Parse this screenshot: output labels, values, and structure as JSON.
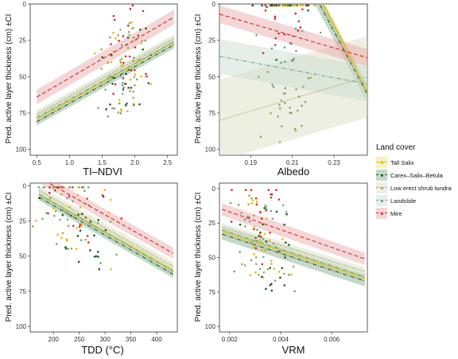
{
  "legend": {
    "title": "Land cover",
    "position": "right",
    "entries": [
      {
        "name": "Tall Salix",
        "color": "#e7b800",
        "fill": "#f5de7a",
        "dash": "none"
      },
      {
        "name": "Carex–Salix–Betula",
        "color": "#1b5e20",
        "fill": "#7fa88a",
        "dash": "dashdot"
      },
      {
        "name": "Low erect shrub tundra",
        "color": "#a3a35a",
        "fill": "#dadbc0",
        "dash": "dotted"
      },
      {
        "name": "Landslide",
        "color": "#6fa387",
        "fill": "#c6dccd",
        "dash": "dashdot"
      },
      {
        "name": "Mire",
        "color": "#d62828",
        "fill": "#e6a3a3",
        "dash": "dashed"
      }
    ]
  },
  "chart_data": [
    {
      "id": "ndvi",
      "type": "scatter",
      "xlabel": "TI–NDVI",
      "ylabel": "Pred. active layer thickness (cm) ±CI",
      "y_reversed": true,
      "xlim": [
        0.4,
        2.65
      ],
      "ylim": [
        0,
        104
      ],
      "xticks": [
        0.5,
        1.0,
        1.5,
        2.0,
        2.5
      ],
      "xtick_labels": [
        "0.5",
        "1.0",
        "1.5",
        "2.0",
        "2.5"
      ],
      "yticks": [
        0,
        25,
        50,
        75,
        100
      ],
      "ytick_labels": [
        "0",
        "25",
        "50",
        "75",
        "100"
      ],
      "grid": false,
      "fits": [
        {
          "series": "Tall Salix",
          "x": [
            0.5,
            2.6
          ],
          "y": [
            79,
            26
          ],
          "ci": 2.5
        },
        {
          "series": "Carex–Salix–Betula",
          "x": [
            0.5,
            2.6
          ],
          "y": [
            81,
            28
          ],
          "ci": 2.5
        },
        {
          "series": "Low erect shrub tundra",
          "x": [
            0.5,
            2.6
          ],
          "y": [
            76,
            24
          ],
          "ci": 3
        },
        {
          "series": "Landslide",
          "x": [
            0.5,
            2.6
          ],
          "y": [
            78,
            26
          ],
          "ci": 4
        },
        {
          "series": "Mire",
          "x": [
            0.5,
            2.6
          ],
          "y": [
            64,
            9
          ],
          "ci": 5
        }
      ],
      "point_cloud": {
        "x_center": 1.85,
        "x_spread": 0.4,
        "count": 110
      }
    },
    {
      "id": "albedo",
      "type": "scatter",
      "xlabel": "Albedo",
      "ylabel": "Pred. active layer thickness (cm) ±CI",
      "y_reversed": true,
      "xlim": [
        0.175,
        0.246
      ],
      "ylim": [
        0,
        104
      ],
      "xticks": [
        0.19,
        0.21,
        0.23
      ],
      "xtick_labels": [
        "0.19",
        "0.21",
        "0.23"
      ],
      "yticks": [
        0,
        25,
        50,
        75,
        100
      ],
      "ytick_labels": [
        "0",
        "25",
        "50",
        "75",
        "100"
      ],
      "grid": false,
      "fits": [
        {
          "series": "Tall Salix",
          "x": [
            0.2,
            0.246
          ],
          "y": [
            -70,
            60
          ],
          "ci": 4
        },
        {
          "series": "Carex–Salix–Betula",
          "x": [
            0.2,
            0.246
          ],
          "y": [
            -62,
            62
          ],
          "ci": 6
        },
        {
          "series": "Low erect shrub tundra",
          "x": [
            0.175,
            0.246
          ],
          "y": [
            80,
            50
          ],
          "ci": 28
        },
        {
          "series": "Landslide",
          "x": [
            0.175,
            0.246
          ],
          "y": [
            36,
            55
          ],
          "ci": 12
        },
        {
          "series": "Mire",
          "x": [
            0.175,
            0.246
          ],
          "y": [
            7,
            37
          ],
          "ci": 6
        }
      ],
      "point_cloud": {
        "x_center": 0.207,
        "x_spread": 0.012,
        "count": 110
      }
    },
    {
      "id": "tdd",
      "type": "scatter",
      "xlabel": "TDD (°C)",
      "ylabel": "Pred. active layer thickness (cm) ±CI",
      "y_reversed": true,
      "xlim": [
        155,
        440
      ],
      "ylim": [
        -2,
        104
      ],
      "xticks": [
        200,
        250,
        300,
        350,
        400
      ],
      "xtick_labels": [
        "200",
        "250",
        "300",
        "350",
        "400"
      ],
      "yticks": [
        0,
        25,
        50,
        75,
        100
      ],
      "ytick_labels": [
        "0",
        "25",
        "50",
        "75",
        "100"
      ],
      "grid": false,
      "fits": [
        {
          "series": "Tall Salix",
          "x": [
            172,
            432
          ],
          "y": [
            6,
            60
          ],
          "ci": 2.5
        },
        {
          "series": "Carex–Salix–Betula",
          "x": [
            172,
            432
          ],
          "y": [
            8,
            63
          ],
          "ci": 2.5
        },
        {
          "series": "Low erect shrub tundra",
          "x": [
            172,
            432
          ],
          "y": [
            3,
            57
          ],
          "ci": 3
        },
        {
          "series": "Landslide",
          "x": [
            172,
            432
          ],
          "y": [
            6,
            61
          ],
          "ci": 3.5
        },
        {
          "series": "Mire",
          "x": [
            172,
            432
          ],
          "y": [
            -6,
            48
          ],
          "ci": 4
        }
      ],
      "point_cloud": {
        "x_center": 240,
        "x_spread": 70,
        "count": 110
      }
    },
    {
      "id": "vrm",
      "type": "scatter",
      "xlabel": "VRM",
      "ylabel": "Pred. active layer thickness (cm) ±CI",
      "y_reversed": true,
      "xlim": [
        0.0016,
        0.0074
      ],
      "ylim": [
        -4,
        104
      ],
      "xticks": [
        0.002,
        0.004,
        0.006
      ],
      "xtick_labels": [
        "0.002",
        "0.004",
        "0.006"
      ],
      "yticks": [
        0,
        25,
        50,
        75,
        100
      ],
      "ytick_labels": [
        "0",
        "25",
        "50",
        "75",
        "100"
      ],
      "grid": false,
      "fits": [
        {
          "series": "Tall Salix",
          "x": [
            0.0017,
            0.0073
          ],
          "y": [
            31,
            65
          ],
          "ci": 3
        },
        {
          "series": "Carex–Salix–Betula",
          "x": [
            0.0017,
            0.0073
          ],
          "y": [
            33,
            67
          ],
          "ci": 4
        },
        {
          "series": "Low erect shrub tundra",
          "x": [
            0.0017,
            0.0073
          ],
          "y": [
            28,
            60
          ],
          "ci": 3
        },
        {
          "series": "Landslide",
          "x": [
            0.0017,
            0.0073
          ],
          "y": [
            30,
            64
          ],
          "ci": 4
        },
        {
          "series": "Mire",
          "x": [
            0.0017,
            0.0073
          ],
          "y": [
            15,
            51
          ],
          "ci": 4.5
        }
      ],
      "point_cloud": {
        "x_center": 0.0033,
        "x_spread": 0.0012,
        "count": 110
      }
    }
  ]
}
